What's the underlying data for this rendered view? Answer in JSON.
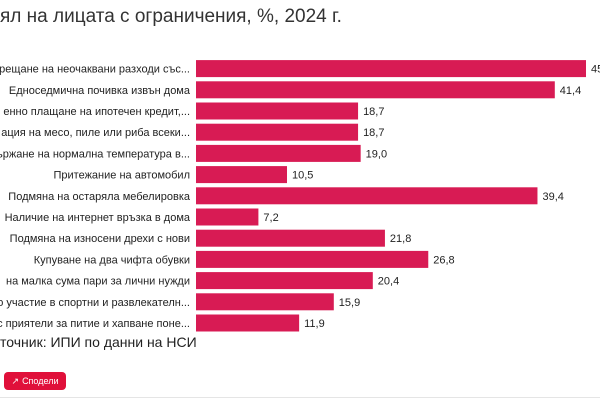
{
  "page": {
    "title": "ял на лицата с ограничения, %, 2024 г.",
    "source": "точник: ИПИ по данни на НСИ",
    "share_label": "Сподели",
    "share_icon": "share-icon"
  },
  "colors": {
    "bar": "#d81b54",
    "share_button": "#e0103a"
  },
  "chart_data": {
    "type": "bar",
    "orientation": "horizontal",
    "categories": [
      "рещане на неочаквани разходи със...",
      "Едноседмична почивка извън дома",
      "енно плащане на ипотечен кредит,...",
      "ация на месо, пиле или риба всеки...",
      "ържане на нормална температура в...",
      "Притежание на автомобил",
      "Подмяна на остаряла мебелировка",
      "Наличие на интернет връзка в дома",
      "Подмяна на износени дрехи с нови",
      "Купуване на два чифта обувки",
      "на малка сума пари за лични нужди",
      "о участие в спортни и развлекателн...",
      "с приятели за питие и хапване поне..."
    ],
    "values": [
      45.0,
      41.4,
      18.7,
      18.7,
      19.0,
      10.5,
      39.4,
      7.2,
      21.8,
      26.8,
      20.4,
      15.9,
      11.9
    ],
    "value_labels": [
      "45",
      "41,4",
      "18,7",
      "18,7",
      "19,0",
      "10,5",
      "39,4",
      "7,2",
      "21,8",
      "26,8",
      "20,4",
      "15,9",
      "11,9"
    ],
    "xlim": [
      0,
      45
    ],
    "grid": false,
    "legend": "none"
  }
}
